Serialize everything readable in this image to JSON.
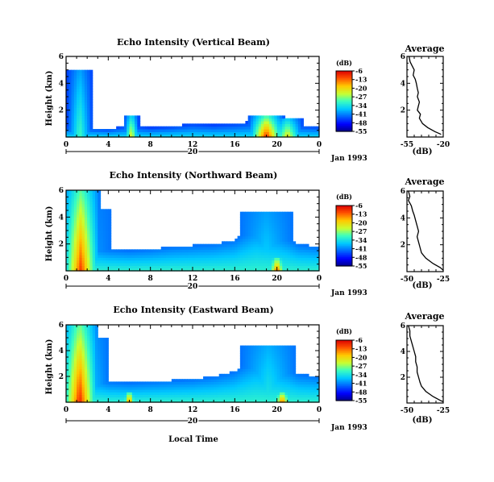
{
  "figure": {
    "x_title": "Local Time"
  },
  "panels": [
    {
      "title": "Echo Intensity (Vertical Beam)",
      "ylabel": "Height (km)",
      "yticks": [
        "6",
        "4",
        "2"
      ],
      "xticks": [
        "0",
        "4",
        "8",
        "12",
        "16",
        "20",
        "0"
      ],
      "day_label": "20",
      "date_label": "Jan 1993",
      "colorbar": {
        "unit": "(dB)",
        "labels": [
          "-6",
          "-13",
          "-20",
          "-27",
          "-34",
          "-41",
          "-48",
          "-55"
        ]
      },
      "average": {
        "title": "Average",
        "xlabel": "(dB)",
        "xticks": [
          "-55",
          "-20"
        ],
        "yticks": [
          "6",
          "4",
          "2"
        ]
      }
    },
    {
      "title": "Echo Intensity (Northward Beam)",
      "ylabel": "Height (km)",
      "yticks": [
        "6",
        "4",
        "2"
      ],
      "xticks": [
        "0",
        "4",
        "8",
        "12",
        "16",
        "20",
        "0"
      ],
      "day_label": "20",
      "date_label": "Jan 1993",
      "colorbar": {
        "unit": "(dB)",
        "labels": [
          "-6",
          "-13",
          "-20",
          "-27",
          "-34",
          "-41",
          "-48",
          "-55"
        ]
      },
      "average": {
        "title": "Average",
        "xlabel": "(dB)",
        "xticks": [
          "-50",
          "-25"
        ],
        "yticks": [
          "6",
          "4",
          "2"
        ]
      }
    },
    {
      "title": "Echo Intensity (Eastward Beam)",
      "ylabel": "Height (km)",
      "yticks": [
        "6",
        "4",
        "2"
      ],
      "xticks": [
        "0",
        "4",
        "8",
        "12",
        "16",
        "20",
        "0"
      ],
      "day_label": "20",
      "date_label": "Jan 1993",
      "colorbar": {
        "unit": "(dB)",
        "labels": [
          "-6",
          "-13",
          "-20",
          "-27",
          "-34",
          "-41",
          "-48",
          "-55"
        ]
      },
      "average": {
        "title": "Average",
        "xlabel": "(dB)",
        "xticks": [
          "-50",
          "-25"
        ],
        "yticks": [
          "6",
          "4",
          "2"
        ]
      }
    }
  ],
  "chart_data": [
    {
      "type": "heatmap",
      "title": "Echo Intensity (Vertical Beam)",
      "xlabel": "Local Time",
      "ylabel": "Height (km)",
      "xlim": [
        0,
        24
      ],
      "ylim": [
        0,
        6
      ],
      "colorbar_label": "(dB)",
      "colorbar_range": [
        -55,
        -6
      ],
      "layer_profile": [
        [
          0,
          0.8
        ],
        [
          2,
          0.7
        ],
        [
          4,
          0.6
        ],
        [
          6,
          0.9
        ],
        [
          8,
          0.7
        ],
        [
          10,
          0.8
        ],
        [
          12,
          1.0
        ],
        [
          14,
          0.9
        ],
        [
          16,
          1.0
        ],
        [
          18,
          1.2
        ],
        [
          20,
          1.0
        ],
        [
          22,
          0.9
        ],
        [
          24,
          0.8
        ]
      ],
      "plumes": [
        {
          "t": 1.3,
          "w": 1.2,
          "top": 5.0,
          "peak_db": -30
        },
        {
          "t": 6.2,
          "w": 0.7,
          "top": 1.6,
          "peak_db": -20
        },
        {
          "t": 19.0,
          "w": 1.8,
          "top": 1.6,
          "peak_db": -8
        },
        {
          "t": 21.0,
          "w": 1.5,
          "top": 1.3,
          "peak_db": -20
        }
      ],
      "base_db": -45
    },
    {
      "type": "line",
      "title": "Average",
      "xlabel": "(dB)",
      "ylabel": "Height (km)",
      "xlim": [
        -55,
        -20
      ],
      "ylim": [
        0,
        6
      ],
      "points": [
        [
          -53,
          6.0
        ],
        [
          -52,
          5.6
        ],
        [
          -50,
          5.3
        ],
        [
          -48,
          5.0
        ],
        [
          -49,
          4.6
        ],
        [
          -47,
          4.3
        ],
        [
          -46,
          4.0
        ],
        [
          -45,
          3.6
        ],
        [
          -44,
          3.3
        ],
        [
          -45,
          3.0
        ],
        [
          -43,
          2.6
        ],
        [
          -44,
          2.3
        ],
        [
          -45,
          2.0
        ],
        [
          -42,
          1.7
        ],
        [
          -43,
          1.4
        ],
        [
          -40,
          1.0
        ],
        [
          -35,
          0.7
        ],
        [
          -28,
          0.4
        ],
        [
          -22,
          0.2
        ]
      ]
    },
    {
      "type": "heatmap",
      "title": "Echo Intensity (Northward Beam)",
      "xlabel": "Local Time",
      "ylabel": "Height (km)",
      "xlim": [
        0,
        24
      ],
      "ylim": [
        0,
        6
      ],
      "colorbar_label": "(dB)",
      "colorbar_range": [
        -55,
        -6
      ],
      "layer_profile": [
        [
          0,
          1.8
        ],
        [
          2,
          2.0
        ],
        [
          4,
          1.6
        ],
        [
          6,
          1.5
        ],
        [
          8,
          1.6
        ],
        [
          10,
          1.8
        ],
        [
          12,
          1.9
        ],
        [
          14,
          2.0
        ],
        [
          16,
          2.3
        ],
        [
          18,
          3.5
        ],
        [
          20,
          3.0
        ],
        [
          22,
          2.0
        ],
        [
          24,
          1.8
        ]
      ],
      "plumes": [
        {
          "t": 1.4,
          "w": 1.8,
          "top": 6.0,
          "peak_db": -10
        },
        {
          "t": 3.2,
          "w": 1.0,
          "top": 4.5,
          "peak_db": -40
        },
        {
          "t": 19.0,
          "w": 2.5,
          "top": 4.3,
          "peak_db": -35
        },
        {
          "t": 20.0,
          "w": 0.8,
          "top": 1.0,
          "peak_db": -10
        }
      ],
      "base_db": -42
    },
    {
      "type": "line",
      "title": "Average",
      "xlabel": "(dB)",
      "ylabel": "Height (km)",
      "xlim": [
        -50,
        -25
      ],
      "ylim": [
        0,
        6
      ],
      "points": [
        [
          -49,
          6.0
        ],
        [
          -48,
          5.6
        ],
        [
          -49,
          5.3
        ],
        [
          -47,
          4.9
        ],
        [
          -46,
          4.5
        ],
        [
          -45,
          4.2
        ],
        [
          -44,
          3.8
        ],
        [
          -43,
          3.4
        ],
        [
          -42,
          3.0
        ],
        [
          -43,
          2.6
        ],
        [
          -42,
          2.2
        ],
        [
          -41,
          1.8
        ],
        [
          -40,
          1.4
        ],
        [
          -37,
          1.0
        ],
        [
          -32,
          0.6
        ],
        [
          -27,
          0.3
        ],
        [
          -25,
          0.1
        ]
      ]
    },
    {
      "type": "heatmap",
      "title": "Echo Intensity (Eastward Beam)",
      "xlabel": "Local Time",
      "ylabel": "Height (km)",
      "xlim": [
        0,
        24
      ],
      "ylim": [
        0,
        6
      ],
      "colorbar_label": "(dB)",
      "colorbar_range": [
        -55,
        -6
      ],
      "layer_profile": [
        [
          0,
          2.0
        ],
        [
          2,
          2.2
        ],
        [
          4,
          1.6
        ],
        [
          6,
          1.5
        ],
        [
          8,
          1.6
        ],
        [
          10,
          1.7
        ],
        [
          12,
          1.8
        ],
        [
          14,
          2.0
        ],
        [
          16,
          2.4
        ],
        [
          18,
          3.6
        ],
        [
          20,
          3.2
        ],
        [
          22,
          2.2
        ],
        [
          24,
          2.0
        ]
      ],
      "plumes": [
        {
          "t": 1.3,
          "w": 1.8,
          "top": 6.0,
          "peak_db": -8
        },
        {
          "t": 3.0,
          "w": 1.0,
          "top": 5.0,
          "peak_db": -38
        },
        {
          "t": 19.2,
          "w": 2.6,
          "top": 4.4,
          "peak_db": -33
        },
        {
          "t": 6.0,
          "w": 0.6,
          "top": 0.8,
          "peak_db": -10
        },
        {
          "t": 20.5,
          "w": 0.8,
          "top": 0.8,
          "peak_db": -10
        }
      ],
      "base_db": -42
    },
    {
      "type": "line",
      "title": "Average",
      "xlabel": "(dB)",
      "ylabel": "Height (km)",
      "xlim": [
        -50,
        -25
      ],
      "ylim": [
        0,
        6
      ],
      "points": [
        [
          -49,
          6.0
        ],
        [
          -48,
          5.6
        ],
        [
          -48,
          5.2
        ],
        [
          -47,
          4.8
        ],
        [
          -46,
          4.4
        ],
        [
          -45,
          4.0
        ],
        [
          -44,
          3.6
        ],
        [
          -44,
          3.2
        ],
        [
          -43,
          2.8
        ],
        [
          -43,
          2.4
        ],
        [
          -42,
          2.0
        ],
        [
          -41,
          1.6
        ],
        [
          -40,
          1.3
        ],
        [
          -37,
          0.9
        ],
        [
          -32,
          0.5
        ],
        [
          -27,
          0.2
        ],
        [
          -25,
          0.1
        ]
      ]
    }
  ]
}
